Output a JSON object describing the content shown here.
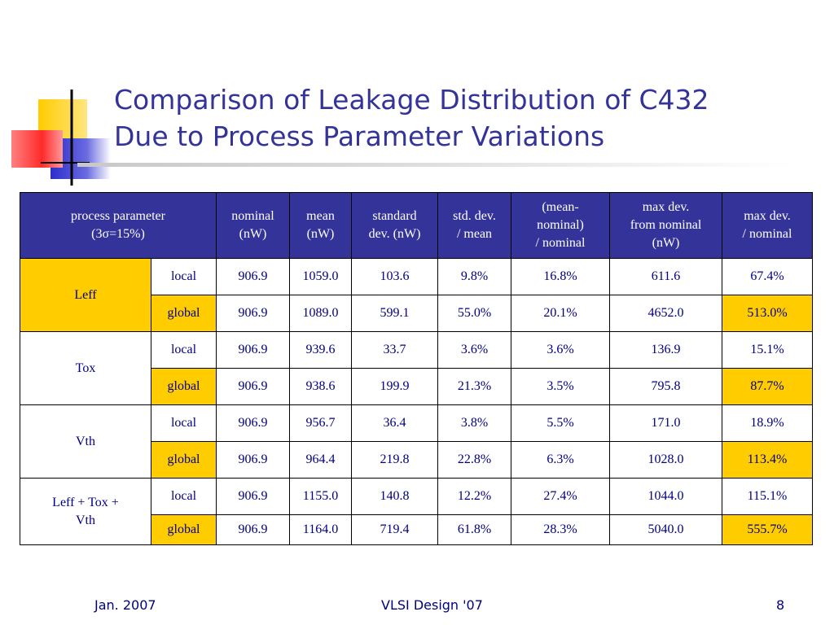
{
  "title": {
    "line1": "Comparison of Leakage Distribution of C432",
    "line2": "Due to Process Parameter Variations"
  },
  "colors": {
    "title": "#333399",
    "header_bg": "#333399",
    "highlight": "#ffcc00",
    "cell_text": "#000080"
  },
  "table": {
    "headers": [
      [
        "process parameter",
        "(3σ=15%)"
      ],
      [
        "nominal",
        "(nW)"
      ],
      [
        "mean",
        "(nW)"
      ],
      [
        "standard",
        "dev. (nW)"
      ],
      [
        "std. dev.",
        "/ mean"
      ],
      [
        "(mean-",
        "nominal)",
        "/ nominal"
      ],
      [
        "max dev.",
        "from nominal",
        "(nW)"
      ],
      [
        "max dev.",
        "/ nominal"
      ]
    ],
    "groups": [
      {
        "name": [
          "Leff"
        ],
        "highlight": true,
        "rows": [
          {
            "level": "local",
            "values": [
              "906.9",
              "1059.0",
              "103.6",
              "9.8%",
              "16.8%",
              "611.6",
              "67.4%"
            ]
          },
          {
            "level": "global",
            "values": [
              "906.9",
              "1089.0",
              "599.1",
              "55.0%",
              "20.1%",
              "4652.0",
              "513.0%"
            ]
          }
        ]
      },
      {
        "name": [
          "Tox"
        ],
        "highlight": false,
        "rows": [
          {
            "level": "local",
            "values": [
              "906.9",
              "939.6",
              "33.7",
              "3.6%",
              "3.6%",
              "136.9",
              "15.1%"
            ]
          },
          {
            "level": "global",
            "values": [
              "906.9",
              "938.6",
              "199.9",
              "21.3%",
              "3.5%",
              "795.8",
              "87.7%"
            ]
          }
        ]
      },
      {
        "name": [
          "Vth"
        ],
        "highlight": false,
        "rows": [
          {
            "level": "local",
            "values": [
              "906.9",
              "956.7",
              "36.4",
              "3.8%",
              "5.5%",
              "171.0",
              "18.9%"
            ]
          },
          {
            "level": "global",
            "values": [
              "906.9",
              "964.4",
              "219.8",
              "22.8%",
              "6.3%",
              "1028.0",
              "113.4%"
            ]
          }
        ]
      },
      {
        "name": [
          "Leff + Tox +",
          "Vth"
        ],
        "highlight": false,
        "rows": [
          {
            "level": "local",
            "values": [
              "906.9",
              "1155.0",
              "140.8",
              "12.2%",
              "27.4%",
              "1044.0",
              "115.1%"
            ]
          },
          {
            "level": "global",
            "values": [
              "906.9",
              "1164.0",
              "719.4",
              "61.8%",
              "28.3%",
              "5040.0",
              "555.7%"
            ]
          }
        ]
      }
    ]
  },
  "footer": {
    "date": "Jan. 2007",
    "center": "VLSI Design '07",
    "page": "8"
  }
}
